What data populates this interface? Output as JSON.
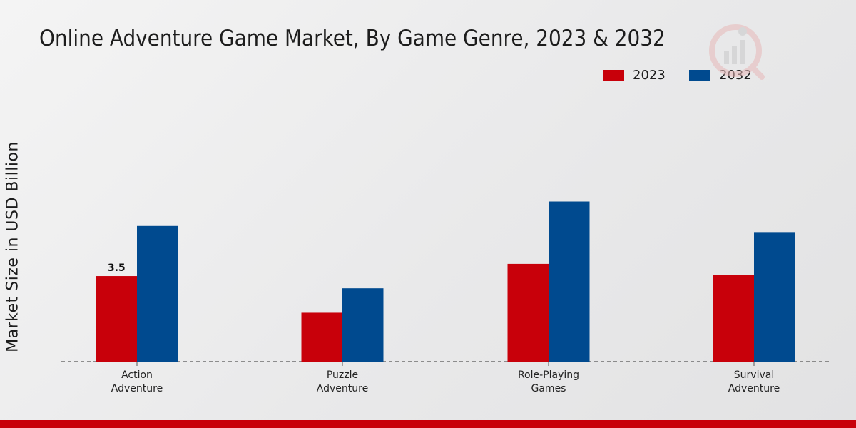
{
  "chart_data": {
    "type": "bar",
    "title": "Online Adventure Game Market, By Game Genre, 2023 & 2032",
    "xlabel": "",
    "ylabel": "Market Size in USD Billion",
    "categories": [
      "Action\nAdventure",
      "Puzzle\nAdventure",
      "Role-Playing\nGames",
      "Survival\nAdventure"
    ],
    "series": [
      {
        "name": "2023",
        "color": "#c8000a",
        "values": [
          3.5,
          2.0,
          4.0,
          3.55
        ]
      },
      {
        "name": "2032",
        "color": "#004a8f",
        "values": [
          5.55,
          3.0,
          6.55,
          5.3
        ]
      }
    ],
    "data_labels": [
      {
        "series": 0,
        "index": 0,
        "text": "3.5"
      }
    ],
    "ylim": [
      0,
      11
    ],
    "grid": false,
    "legend_position": "top-right"
  }
}
